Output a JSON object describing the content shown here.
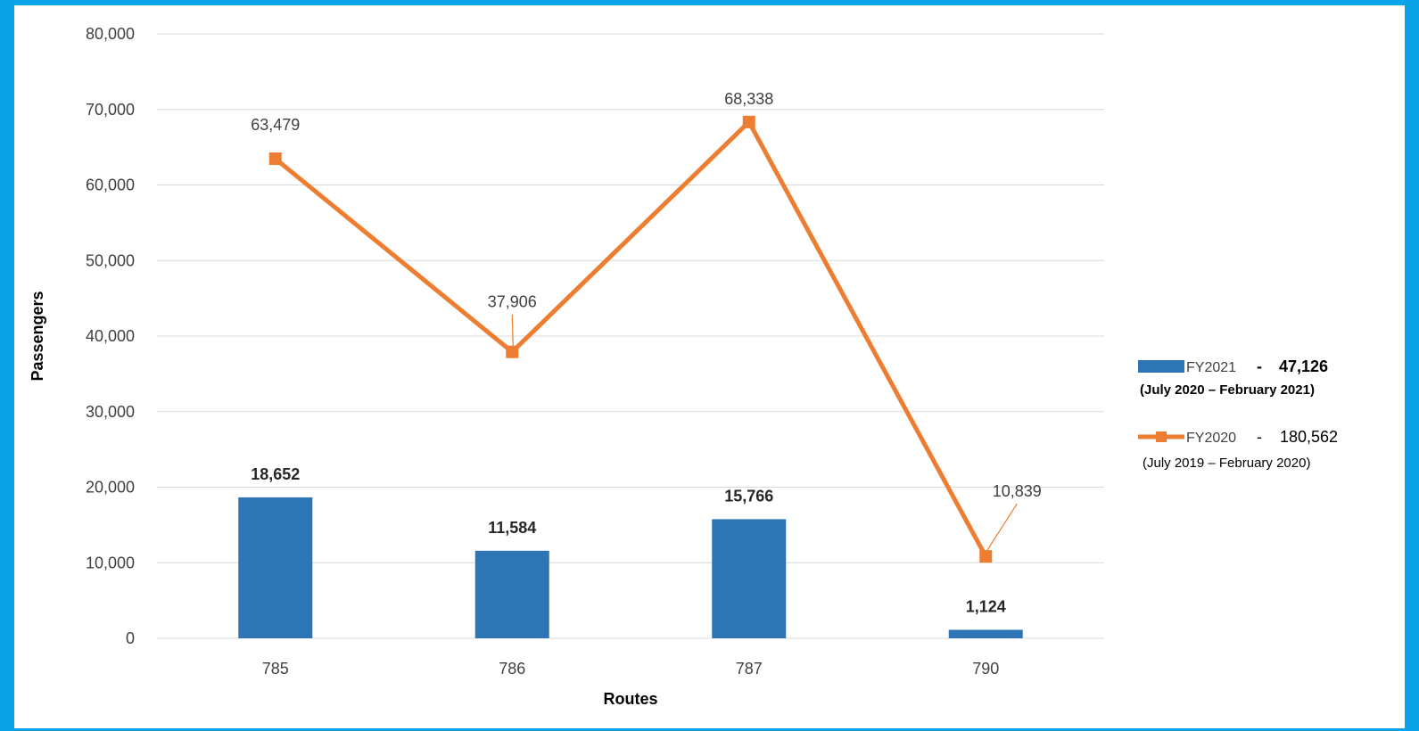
{
  "chart_data": {
    "type": "bar",
    "categories": [
      "785",
      "786",
      "787",
      "790"
    ],
    "xlabel": "Routes",
    "ylabel": "Passengers",
    "ylim": [
      0,
      80000
    ],
    "yticks": [
      0,
      10000,
      20000,
      30000,
      40000,
      50000,
      60000,
      70000,
      80000
    ],
    "ytick_labels": [
      "0",
      "10,000",
      "20,000",
      "30,000",
      "40,000",
      "50,000",
      "60,000",
      "70,000",
      "80,000"
    ],
    "grid": true,
    "legend_position": "right",
    "series": [
      {
        "name": "FY2021",
        "type": "bar",
        "values": [
          18652,
          11584,
          15766,
          1124
        ],
        "labels": [
          "18,652",
          "11,584",
          "15,766",
          "1,124"
        ],
        "color": "#2e75b6",
        "legend_total": "47,126",
        "legend_period": "(July 2020 – February 2021)"
      },
      {
        "name": "FY2020",
        "type": "line",
        "values": [
          63479,
          37906,
          68338,
          10839
        ],
        "labels": [
          "63,479",
          "37,906",
          "68,338",
          "10,839"
        ],
        "color": "#ed7d31",
        "legend_total": "180,562",
        "legend_period": "(July 2019 – February 2020)"
      }
    ],
    "legend_separator": "-",
    "frame_color": "#0aa3e8",
    "gridline_color": "#d9d9d9"
  }
}
